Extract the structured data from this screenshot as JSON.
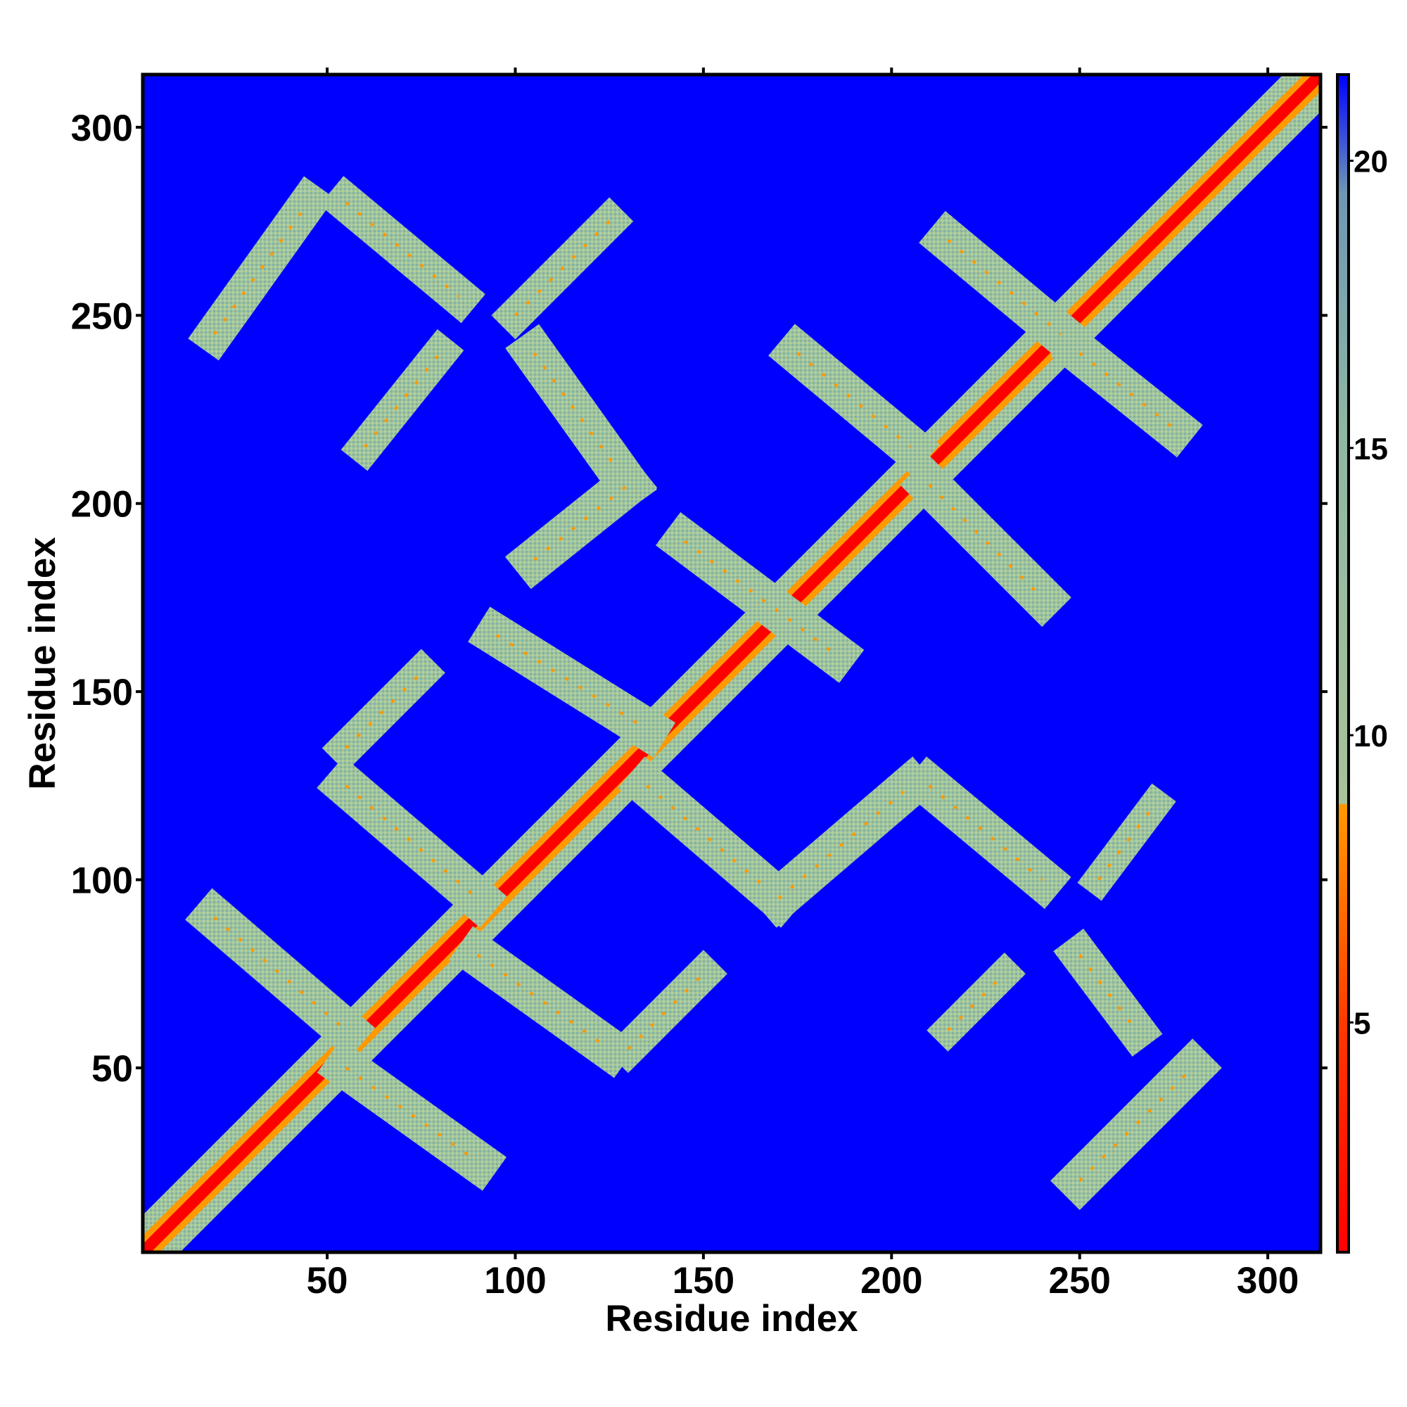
{
  "chart_data": {
    "type": "heatmap",
    "title": "",
    "xlabel": "Residue index",
    "ylabel": "Residue index",
    "xlim": [
      1,
      314
    ],
    "ylim": [
      1,
      314
    ],
    "x_ticks": [
      50,
      100,
      150,
      200,
      250,
      300
    ],
    "y_ticks": [
      50,
      100,
      150,
      200,
      250,
      300
    ],
    "colorbar": {
      "range": [
        1,
        21.5
      ],
      "ticks": [
        5,
        10,
        15,
        20
      ],
      "colors": {
        "near": "#ff0000",
        "mid": "#ff9900",
        "far": "#9fc59f",
        "background": "#0000ff",
        "top": "#5b86b3"
      }
    },
    "description_values": {
      "diagonal_distance": 1,
      "contact_band_distance": 9,
      "background_distance": 21
    },
    "contact_segments": [
      {
        "x": [
          1,
          314
        ],
        "y": [
          1,
          314
        ],
        "width": 14,
        "type": "diagonal"
      },
      {
        "x": [
          20,
          45
        ],
        "y": [
          245,
          280
        ],
        "width": 10
      },
      {
        "x": [
          55,
          85
        ],
        "y": [
          280,
          255
        ],
        "width": 10
      },
      {
        "x": [
          60,
          80
        ],
        "y": [
          215,
          240
        ],
        "width": 9
      },
      {
        "x": [
          100,
          125
        ],
        "y": [
          250,
          275
        ],
        "width": 9
      },
      {
        "x": [
          105,
          130
        ],
        "y": [
          240,
          205
        ],
        "width": 11
      },
      {
        "x": [
          105,
          130
        ],
        "y": [
          185,
          205
        ],
        "width": 11
      },
      {
        "x": [
          95,
          135
        ],
        "y": [
          165,
          140
        ],
        "width": 11
      },
      {
        "x": [
          55,
          75
        ],
        "y": [
          135,
          155
        ],
        "width": 9
      },
      {
        "x": [
          55,
          90
        ],
        "y": [
          125,
          95
        ],
        "width": 11
      },
      {
        "x": [
          20,
          55
        ],
        "y": [
          90,
          60
        ],
        "width": 11
      },
      {
        "x": [
          55,
          90
        ],
        "y": [
          50,
          25
        ],
        "width": 11
      },
      {
        "x": [
          90,
          125
        ],
        "y": [
          80,
          55
        ],
        "width": 11
      },
      {
        "x": [
          130,
          150
        ],
        "y": [
          55,
          75
        ],
        "width": 9
      },
      {
        "x": [
          135,
          170
        ],
        "y": [
          125,
          95
        ],
        "width": 11
      },
      {
        "x": [
          170,
          205
        ],
        "y": [
          95,
          125
        ],
        "width": 11
      },
      {
        "x": [
          210,
          240
        ],
        "y": [
          125,
          100
        ],
        "width": 11
      },
      {
        "x": [
          145,
          185
        ],
        "y": [
          190,
          160
        ],
        "width": 11
      },
      {
        "x": [
          175,
          205
        ],
        "y": [
          240,
          215
        ],
        "width": 11
      },
      {
        "x": [
          215,
          245
        ],
        "y": [
          270,
          245
        ],
        "width": 11
      },
      {
        "x": [
          250,
          275
        ],
        "y": [
          240,
          220
        ],
        "width": 11
      },
      {
        "x": [
          210,
          240
        ],
        "y": [
          205,
          175
        ],
        "width": 11
      },
      {
        "x": [
          250,
          265
        ],
        "y": [
          80,
          60
        ],
        "width": 10
      },
      {
        "x": [
          250,
          280
        ],
        "y": [
          20,
          50
        ],
        "width": 11
      },
      {
        "x": [
          215,
          230
        ],
        "y": [
          60,
          75
        ],
        "width": 8
      },
      {
        "x": [
          255,
          270
        ],
        "y": [
          100,
          120
        ],
        "width": 8
      }
    ]
  }
}
